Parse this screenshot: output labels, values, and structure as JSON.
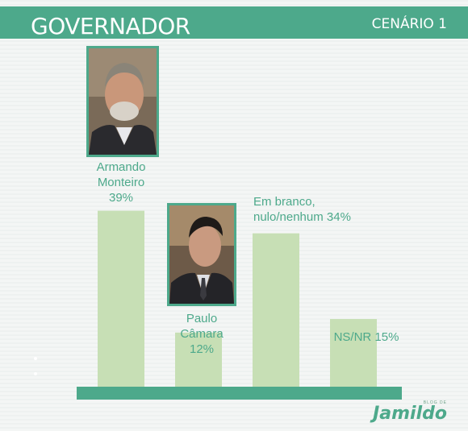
{
  "header": {
    "title": "GOVERNADOR",
    "scenario": "CENÁRIO 1"
  },
  "chart_data": {
    "type": "bar",
    "categories": [
      "Armando Monteiro",
      "Paulo Câmara",
      "Em branco, nulo/nenhum",
      "NS/NR"
    ],
    "values": [
      39,
      12,
      34,
      15
    ],
    "value_labels": [
      "39%",
      "12%",
      "34%",
      "15%"
    ],
    "unit": "%",
    "title": "GOVERNADOR",
    "subtitle": "CENÁRIO 1",
    "xlabel": "",
    "ylabel": "",
    "ylim": [
      0,
      45
    ],
    "grid": false,
    "bar_color": "#c7dfb5",
    "baseline_color": "#4da98b",
    "label_color": "#4da98b"
  },
  "labels": {
    "armando": [
      "Armando",
      "Monteiro",
      "39%"
    ],
    "paulo": [
      "Paulo",
      "Câmara",
      "12%"
    ],
    "branco": [
      "Em branco,",
      "nulo/nenhum 34%"
    ],
    "nsnr": [
      "NS/NR 15%"
    ]
  },
  "logo": {
    "small": "BLOG DE",
    "main": "Jamildo"
  },
  "colors": {
    "accent": "#4da98b",
    "bar": "#c7dfb5"
  }
}
